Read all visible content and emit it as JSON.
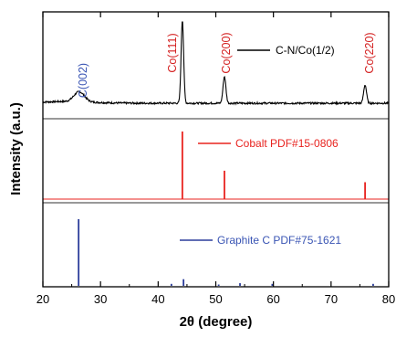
{
  "chart_data": {
    "type": "line",
    "xlabel": "2θ (degree)",
    "ylabel": "Intensity (a.u.)",
    "xlim": [
      20,
      80
    ],
    "x_ticks": [
      20,
      30,
      40,
      50,
      60,
      70,
      80
    ],
    "y_ticks_shown": false,
    "colors": {
      "cn_co": "#000000",
      "cobalt": "#e8231f",
      "graphite": "#2b3d9b",
      "graphite_label": "#3a55b4"
    },
    "series": [
      {
        "name": "C-N/Co(1/2)",
        "color": "#000000",
        "peaks": [
          {
            "x": 26.3,
            "y": 0.12
          },
          {
            "x": 44.2,
            "y": 1.0
          },
          {
            "x": 51.5,
            "y": 0.32
          },
          {
            "x": 75.9,
            "y": 0.22
          }
        ]
      },
      {
        "name": "Cobalt PDF#15-0806",
        "color": "#e8231f",
        "sticks": [
          {
            "x": 44.2,
            "y": 1.0
          },
          {
            "x": 51.5,
            "y": 0.42
          },
          {
            "x": 75.9,
            "y": 0.25
          }
        ]
      },
      {
        "name": "Graphite C PDF#75-1621",
        "color": "#2b3d9b",
        "sticks": [
          {
            "x": 26.2,
            "y": 1.0
          },
          {
            "x": 42.3,
            "y": 0.03
          },
          {
            "x": 44.4,
            "y": 0.1
          },
          {
            "x": 50.5,
            "y": 0.02
          },
          {
            "x": 54.2,
            "y": 0.04
          },
          {
            "x": 59.8,
            "y": 0.03
          },
          {
            "x": 77.3,
            "y": 0.03
          }
        ]
      }
    ],
    "peak_labels": [
      {
        "text": "C(002)",
        "x": 26.3,
        "color": "#3a55b4"
      },
      {
        "text": "Co(111)",
        "x": 44.2,
        "color": "#d42020"
      },
      {
        "text": "Co(200)",
        "x": 51.5,
        "color": "#d42020"
      },
      {
        "text": "Co(220)",
        "x": 75.9,
        "color": "#d42020"
      }
    ],
    "grid": false
  }
}
